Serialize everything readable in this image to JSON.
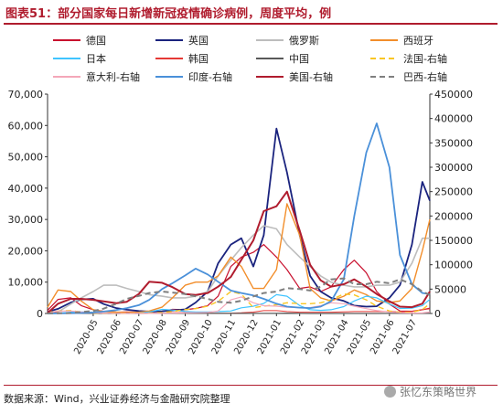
{
  "header": {
    "title": "图表51：部分国家每日新增新冠疫情确诊病例，周度平均，例"
  },
  "footer": {
    "source": "数据来源：Wind，兴业证券经济与金融研究院整理",
    "watermark": "张忆东策略世界"
  },
  "chart_data": {
    "type": "line",
    "x": [
      "2020-03-01",
      "2020-03-15",
      "2020-04-01",
      "2020-04-15",
      "2020-05-01",
      "2020-05-15",
      "2020-06-01",
      "2020-06-15",
      "2020-07-01",
      "2020-07-15",
      "2020-08-01",
      "2020-08-15",
      "2020-09-01",
      "2020-09-15",
      "2020-10-01",
      "2020-10-15",
      "2020-11-01",
      "2020-11-15",
      "2020-12-01",
      "2020-12-15",
      "2021-01-01",
      "2021-01-15",
      "2021-02-01",
      "2021-02-15",
      "2021-03-01",
      "2021-03-15",
      "2021-04-01",
      "2021-04-15",
      "2021-05-01",
      "2021-05-15",
      "2021-06-01",
      "2021-06-15",
      "2021-07-01",
      "2021-07-15",
      "2021-07-25"
    ],
    "x_tick_labels": [
      "2020-05",
      "2020-06",
      "2020-07",
      "2020-08",
      "2020-09",
      "2020-10",
      "2020-11",
      "2020-12",
      "2021-01",
      "2021-02",
      "2021-03",
      "2021-04",
      "2021-05",
      "2021-06",
      "2021-07"
    ],
    "y_left": {
      "ticks": [
        "0",
        "10,000",
        "20,000",
        "30,000",
        "40,000",
        "50,000",
        "60,000",
        "70,000"
      ],
      "ylim": [
        0,
        70000
      ]
    },
    "y_right": {
      "ticks": [
        "0",
        "50000",
        "100000",
        "150000",
        "200000",
        "250000",
        "300000",
        "350000",
        "400000",
        "450000"
      ],
      "ylim": [
        0,
        450000
      ]
    },
    "grid": false,
    "legend_position": "top",
    "series": [
      {
        "name": "德国",
        "axis": "left",
        "color": "#c8102e",
        "dash": false,
        "width": 1.2,
        "values": [
          1000,
          4500,
          5000,
          2500,
          1200,
          700,
          400,
          500,
          400,
          450,
          700,
          1300,
          1200,
          1600,
          2500,
          5500,
          15000,
          18000,
          19500,
          22000,
          18000,
          14000,
          8000,
          8500,
          7000,
          8500,
          14000,
          17000,
          13000,
          7000,
          3000,
          800,
          700,
          1200,
          1700
        ]
      },
      {
        "name": "英国",
        "axis": "left",
        "color": "#1a237e",
        "dash": false,
        "width": 1.8,
        "values": [
          500,
          1500,
          3500,
          4500,
          4700,
          3000,
          1700,
          1200,
          800,
          600,
          700,
          1000,
          1300,
          3500,
          7000,
          16000,
          22000,
          24000,
          15000,
          25000,
          59000,
          45000,
          25000,
          12000,
          7000,
          5000,
          4000,
          2500,
          2200,
          2300,
          5000,
          9000,
          22000,
          42000,
          36000
        ]
      },
      {
        "name": "俄罗斯",
        "axis": "left",
        "color": "#bdbdbd",
        "dash": false,
        "width": 1.6,
        "values": [
          100,
          500,
          3000,
          5000,
          7000,
          9000,
          9000,
          8000,
          7000,
          6000,
          5500,
          5000,
          5000,
          5500,
          7000,
          12000,
          17000,
          21000,
          25000,
          28000,
          27000,
          22000,
          18000,
          15000,
          12000,
          10000,
          9000,
          8500,
          8500,
          9000,
          9000,
          10000,
          16000,
          24000,
          24000
        ]
      },
      {
        "name": "西班牙",
        "axis": "left",
        "color": "#f28e2b",
        "dash": false,
        "width": 1.4,
        "values": [
          2000,
          7500,
          7000,
          4000,
          1200,
          600,
          400,
          300,
          400,
          800,
          2000,
          5000,
          9000,
          10000,
          10000,
          12000,
          18000,
          15000,
          8000,
          8000,
          14000,
          35000,
          25000,
          8000,
          5000,
          4000,
          5500,
          7500,
          6000,
          4000,
          3500,
          4000,
          8000,
          20000,
          30000
        ]
      },
      {
        "name": "日本",
        "axis": "left",
        "color": "#40c4ff",
        "dash": false,
        "width": 1.2,
        "values": [
          30,
          100,
          400,
          500,
          300,
          100,
          50,
          80,
          150,
          500,
          1300,
          1100,
          600,
          500,
          500,
          600,
          800,
          1800,
          2300,
          3200,
          6000,
          5500,
          2500,
          1200,
          1000,
          1200,
          2200,
          4000,
          5500,
          5000,
          3000,
          1600,
          1700,
          2500,
          4500
        ]
      },
      {
        "name": "韩国",
        "axis": "left",
        "color": "#e53935",
        "dash": false,
        "width": 1.0,
        "values": [
          500,
          200,
          80,
          30,
          20,
          20,
          40,
          50,
          50,
          40,
          40,
          200,
          300,
          150,
          80,
          80,
          100,
          200,
          450,
          900,
          900,
          600,
          400,
          400,
          400,
          400,
          500,
          600,
          600,
          600,
          600,
          500,
          600,
          1200,
          1500
        ]
      },
      {
        "name": "中国",
        "axis": "left",
        "color": "#595959",
        "dash": false,
        "width": 1.2,
        "values": [
          400,
          100,
          80,
          50,
          20,
          10,
          10,
          20,
          10,
          20,
          50,
          30,
          20,
          20,
          20,
          20,
          20,
          20,
          20,
          20,
          70,
          110,
          30,
          10,
          10,
          10,
          10,
          10,
          10,
          10,
          20,
          30,
          30,
          50,
          80
        ]
      },
      {
        "name": "法国-右轴",
        "axis": "right",
        "color": "#f9c623",
        "dash": true,
        "width": 1.4,
        "values": [
          2000,
          5000,
          6000,
          3000,
          1000,
          500,
          400,
          500,
          600,
          1000,
          2000,
          4000,
          8000,
          10000,
          15000,
          25000,
          45000,
          40000,
          12000,
          15000,
          18000,
          22000,
          20000,
          20000,
          22000,
          28000,
          40000,
          38000,
          28000,
          15000,
          5000,
          2500,
          2500,
          8000,
          20000
        ]
      },
      {
        "name": "意大利-右轴",
        "axis": "right",
        "color": "#f4a7b9",
        "dash": false,
        "width": 1.2,
        "values": [
          1000,
          5000,
          5000,
          3000,
          1500,
          800,
          400,
          300,
          200,
          200,
          300,
          500,
          1200,
          1500,
          2000,
          5000,
          28000,
          34000,
          22000,
          16000,
          15000,
          13000,
          12000,
          12000,
          16000,
          22000,
          20000,
          15000,
          10000,
          6000,
          3000,
          1500,
          1000,
          1200,
          2800
        ]
      },
      {
        "name": "印度-右轴",
        "axis": "right",
        "color": "#4a90d9",
        "dash": false,
        "width": 1.8,
        "values": [
          50,
          200,
          500,
          1000,
          2000,
          4000,
          7000,
          11000,
          17000,
          28000,
          50000,
          62000,
          78000,
          92000,
          80000,
          65000,
          47000,
          42000,
          37000,
          30000,
          20000,
          14000,
          12000,
          11000,
          14000,
          25000,
          70000,
          200000,
          330000,
          390000,
          300000,
          120000,
          60000,
          42000,
          40000
        ]
      },
      {
        "name": "美国-右轴",
        "axis": "right",
        "color": "#b01c2e",
        "dash": false,
        "width": 2.0,
        "values": [
          1000,
          20000,
          30000,
          30000,
          28000,
          25000,
          21000,
          24000,
          40000,
          65000,
          63000,
          54000,
          40000,
          38000,
          42000,
          55000,
          75000,
          110000,
          150000,
          210000,
          220000,
          250000,
          170000,
          100000,
          68000,
          55000,
          60000,
          70000,
          55000,
          40000,
          25000,
          14000,
          13000,
          20000,
          45000
        ]
      },
      {
        "name": "巴西-右轴",
        "axis": "right",
        "color": "#7f7f7f",
        "dash": true,
        "width": 2.0,
        "values": [
          100,
          500,
          1000,
          3000,
          5000,
          10000,
          20000,
          30000,
          36000,
          42000,
          45000,
          43000,
          40000,
          35000,
          30000,
          24000,
          22000,
          26000,
          35000,
          42000,
          45000,
          52000,
          50000,
          47000,
          55000,
          70000,
          72000,
          60000,
          60000,
          65000,
          62000,
          70000,
          60000,
          45000,
          38000
        ]
      }
    ]
  }
}
